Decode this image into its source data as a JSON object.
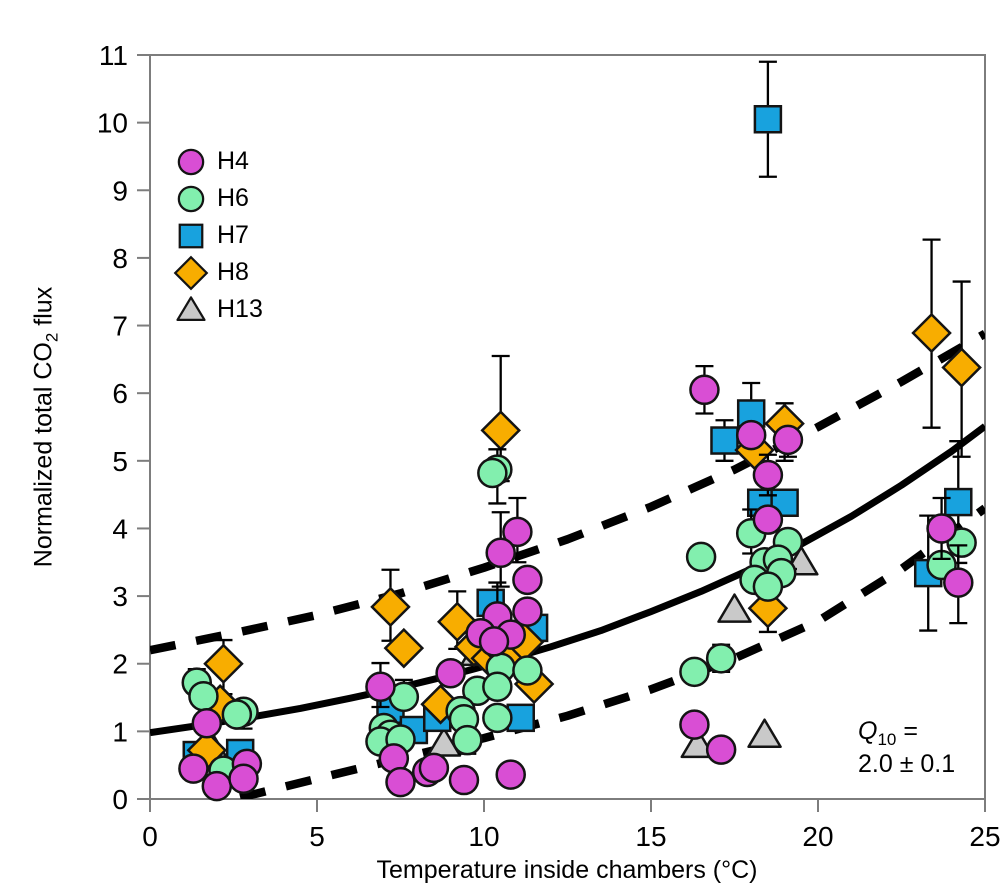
{
  "chart_data": {
    "type": "scatter",
    "xlabel": "Temperature inside chambers (°C)",
    "ylabel": "Normalized total CO2 flux",
    "ylabel_parts": {
      "pre": "Normalized total CO",
      "sub": "2",
      "post": " flux"
    },
    "xlim": [
      0,
      25
    ],
    "ylim": [
      0,
      11
    ],
    "xticks": [
      0,
      5,
      10,
      15,
      20,
      25
    ],
    "yticks": [
      0,
      1,
      2,
      3,
      4,
      5,
      6,
      7,
      8,
      9,
      10,
      11
    ],
    "grid": false,
    "legend_position": "upper-left-inside",
    "annotation": {
      "symbol": "Q",
      "sub": "10",
      "eq": " =",
      "value": "2.0 ± 0.1"
    },
    "series": [
      {
        "name": "H4",
        "shape": "circle",
        "color": "#d94ed4",
        "points": [
          [
            1.7,
            1.12
          ],
          [
            1.3,
            0.45
          ],
          [
            2.9,
            0.52
          ],
          [
            2.0,
            0.19
          ],
          [
            2.8,
            0.3
          ],
          [
            6.9,
            1.66,
            0.35,
            0.3
          ],
          [
            7.3,
            0.6
          ],
          [
            7.5,
            0.25
          ],
          [
            8.3,
            0.4
          ],
          [
            8.5,
            0.46
          ],
          [
            9.4,
            0.28
          ],
          [
            10.8,
            0.36
          ],
          [
            9.0,
            1.86
          ],
          [
            11.0,
            3.95,
            0.5,
            0.45
          ],
          [
            10.5,
            3.64,
            0.6,
            0.5
          ],
          [
            11.3,
            3.24
          ],
          [
            10.4,
            2.7,
            0.5,
            0
          ],
          [
            11.3,
            2.77
          ],
          [
            9.9,
            2.45
          ],
          [
            10.8,
            2.43
          ],
          [
            10.3,
            2.33
          ],
          [
            16.6,
            6.05,
            0.35,
            0.35
          ],
          [
            18.0,
            5.38
          ],
          [
            19.1,
            5.31,
            0,
            0.25
          ],
          [
            18.5,
            4.79,
            0.3,
            0.3
          ],
          [
            18.5,
            4.13
          ],
          [
            16.3,
            1.1
          ],
          [
            17.1,
            0.73
          ],
          [
            23.7,
            4.0,
            0.45,
            0.45
          ],
          [
            24.2,
            3.2,
            0.55,
            0.6
          ]
        ]
      },
      {
        "name": "H6",
        "shape": "circle",
        "color": "#82efae",
        "points": [
          [
            1.4,
            1.72,
            0.2,
            0
          ],
          [
            1.6,
            1.52
          ],
          [
            2.8,
            1.29,
            0,
            0.25
          ],
          [
            2.6,
            1.25
          ],
          [
            2.2,
            0.42
          ],
          [
            7.6,
            1.51,
            0.25,
            0
          ],
          [
            7.0,
            1.05
          ],
          [
            7.2,
            0.95
          ],
          [
            6.9,
            0.85
          ],
          [
            7.5,
            0.88
          ],
          [
            10.4,
            4.87,
            0.3,
            0.5
          ],
          [
            10.25,
            4.82
          ],
          [
            10.5,
            1.94
          ],
          [
            11.3,
            1.9
          ],
          [
            9.8,
            1.6
          ],
          [
            10.4,
            1.66
          ],
          [
            9.3,
            1.3
          ],
          [
            9.4,
            1.18
          ],
          [
            10.4,
            1.2
          ],
          [
            9.5,
            0.87,
            0,
            0.2
          ],
          [
            16.5,
            3.58
          ],
          [
            18.0,
            3.93,
            0.35,
            0.3
          ],
          [
            19.1,
            3.8,
            0,
            0.4
          ],
          [
            18.4,
            3.5
          ],
          [
            18.8,
            3.54
          ],
          [
            18.9,
            3.34
          ],
          [
            18.1,
            3.24
          ],
          [
            18.5,
            3.14
          ],
          [
            17.1,
            2.08,
            0.2,
            0.2
          ],
          [
            16.3,
            1.88
          ],
          [
            24.3,
            3.79
          ],
          [
            23.7,
            3.46
          ]
        ]
      },
      {
        "name": "H7",
        "shape": "square",
        "color": "#18a2de",
        "points": [
          [
            1.4,
            0.65
          ],
          [
            2.7,
            0.68
          ],
          [
            7.2,
            1.32
          ],
          [
            7.9,
            1.02
          ],
          [
            8.6,
            1.2
          ],
          [
            11.1,
            1.2
          ],
          [
            10.2,
            2.9
          ],
          [
            11.5,
            2.53
          ],
          [
            18.5,
            10.05,
            0.85,
            0.85
          ],
          [
            18.0,
            5.7,
            0.45,
            0.4
          ],
          [
            17.2,
            5.3,
            0.3,
            0.3
          ],
          [
            18.3,
            4.38
          ],
          [
            19.0,
            4.38
          ],
          [
            24.2,
            4.39,
            0.9,
            0.9
          ],
          [
            23.3,
            3.34,
            0.85,
            0.85
          ]
        ]
      },
      {
        "name": "H8",
        "shape": "diamond",
        "color": "#f8ad00",
        "points": [
          [
            2.2,
            2.0,
            0.35,
            0.45
          ],
          [
            1.7,
            0.72
          ],
          [
            2.1,
            1.4
          ],
          [
            7.2,
            2.84,
            0.55,
            0.5
          ],
          [
            7.6,
            2.23
          ],
          [
            9.2,
            2.62,
            0.45,
            0.4
          ],
          [
            10.5,
            5.45,
            1.1,
            0.75
          ],
          [
            9.7,
            2.25
          ],
          [
            10.2,
            2.08
          ],
          [
            10.7,
            2.13
          ],
          [
            11.2,
            2.32
          ],
          [
            8.7,
            1.4
          ],
          [
            11.5,
            1.7
          ],
          [
            19.0,
            5.55,
            0.3,
            0.55
          ],
          [
            18.1,
            5.16
          ],
          [
            18.5,
            2.82,
            0.2,
            0.35
          ],
          [
            23.4,
            6.89,
            1.38,
            1.4
          ],
          [
            24.3,
            6.38,
            1.27,
            1.32
          ]
        ]
      },
      {
        "name": "H13",
        "shape": "triangle",
        "color": "#c9c9c9",
        "points": [
          [
            1.9,
            0.72
          ],
          [
            9.8,
            2.16
          ],
          [
            8.8,
            0.82
          ],
          [
            17.5,
            2.8
          ],
          [
            16.4,
            0.8
          ],
          [
            18.4,
            0.95
          ],
          [
            19.5,
            3.5
          ]
        ]
      }
    ],
    "curves": {
      "fit": {
        "style": "solid",
        "points": [
          [
            0,
            0.98
          ],
          [
            1.5,
            1.09
          ],
          [
            3,
            1.21
          ],
          [
            4.5,
            1.34
          ],
          [
            6,
            1.49
          ],
          [
            7.5,
            1.65
          ],
          [
            9,
            1.83
          ],
          [
            10.5,
            2.03
          ],
          [
            12,
            2.25
          ],
          [
            13.5,
            2.49
          ],
          [
            15,
            2.77
          ],
          [
            16.5,
            3.07
          ],
          [
            18,
            3.4
          ],
          [
            19.5,
            3.77
          ],
          [
            21,
            4.18
          ],
          [
            22.5,
            4.64
          ],
          [
            24,
            5.14
          ],
          [
            25,
            5.51
          ]
        ]
      },
      "upper_ci": {
        "style": "dashed",
        "points": [
          [
            0,
            2.2
          ],
          [
            2.5,
            2.45
          ],
          [
            5,
            2.72
          ],
          [
            7.5,
            3.04
          ],
          [
            10,
            3.42
          ],
          [
            12.5,
            3.84
          ],
          [
            15,
            4.32
          ],
          [
            17.5,
            4.87
          ],
          [
            20,
            5.5
          ],
          [
            22.5,
            6.17
          ],
          [
            25,
            6.88
          ]
        ]
      },
      "lower_ci": {
        "style": "dashed",
        "points": [
          [
            2.7,
            0.02
          ],
          [
            5,
            0.3
          ],
          [
            7.5,
            0.6
          ],
          [
            10,
            0.9
          ],
          [
            12.5,
            1.23
          ],
          [
            15,
            1.62
          ],
          [
            17.5,
            2.08
          ],
          [
            20,
            2.63
          ],
          [
            22.5,
            3.4
          ],
          [
            25,
            4.3
          ]
        ]
      }
    }
  }
}
